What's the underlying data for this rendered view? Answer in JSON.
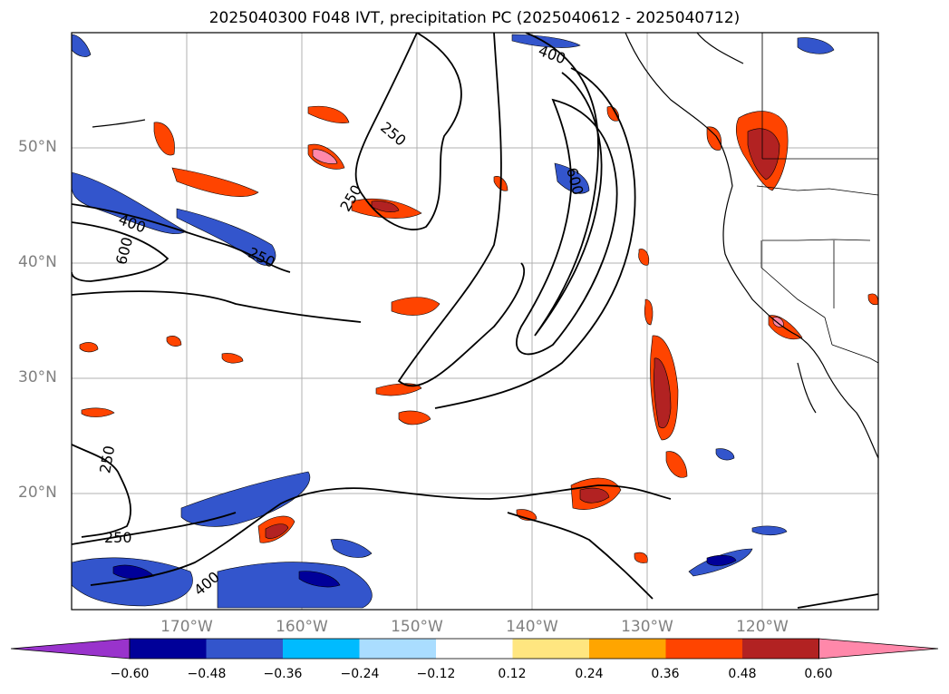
{
  "title": "2025040300 F048 IVT, precipitation PC (2025040612 - 2025040712)",
  "lat_labels": [
    "50°N",
    "40°N",
    "30°N",
    "20°N"
  ],
  "lon_labels": [
    "170°W",
    "160°W",
    "150°W",
    "140°W",
    "130°W",
    "120°W"
  ],
  "contour_labels": [
    "400",
    "250",
    "250",
    "400",
    "600",
    "250",
    "600",
    "250",
    "250",
    "400"
  ],
  "colorbar": {
    "ticks": [
      "−0.60",
      "−0.48",
      "−0.36",
      "−0.24",
      "−0.12",
      "0.12",
      "0.24",
      "0.36",
      "0.48",
      "0.60"
    ],
    "colors": [
      "#9933cc",
      "#000099",
      "#3355cc",
      "#00bbff",
      "#aaddff",
      "#ffffff",
      "#ffe680",
      "#ffa500",
      "#ff4400",
      "#b22222",
      "#ff88aa"
    ]
  }
}
